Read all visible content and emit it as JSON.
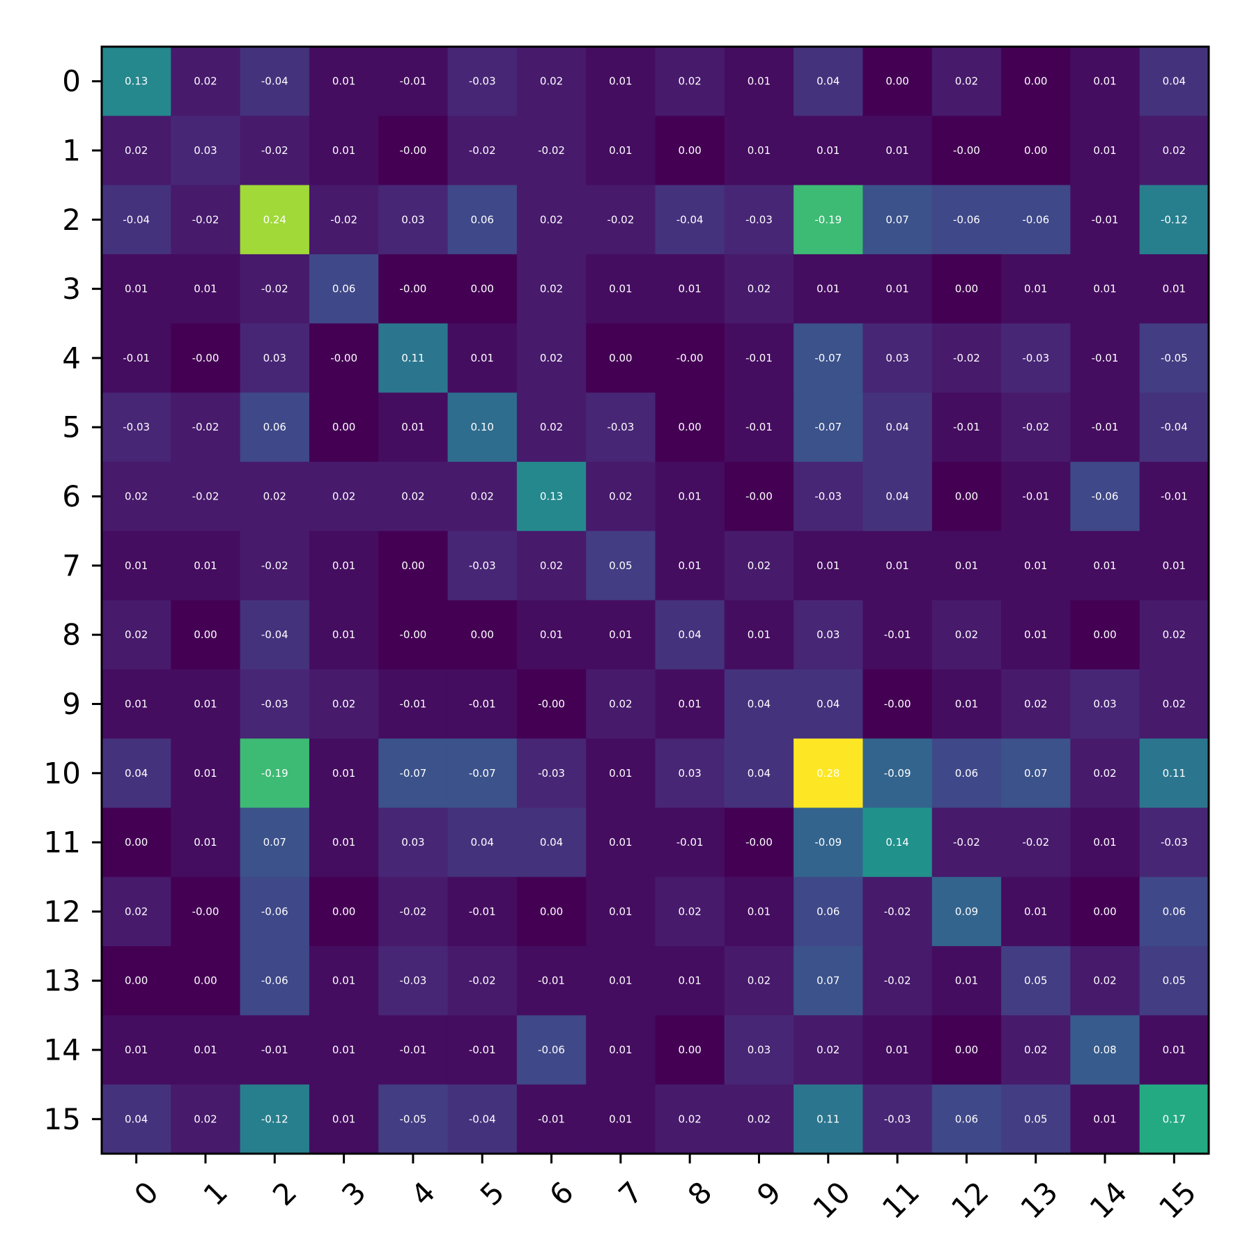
{
  "chart_data": {
    "type": "heatmap",
    "title": "",
    "xlabel": "",
    "ylabel": "",
    "x_categories": [
      "0",
      "1",
      "2",
      "3",
      "4",
      "5",
      "6",
      "7",
      "8",
      "9",
      "10",
      "11",
      "12",
      "13",
      "14",
      "15"
    ],
    "y_categories": [
      "0",
      "1",
      "2",
      "3",
      "4",
      "5",
      "6",
      "7",
      "8",
      "9",
      "10",
      "11",
      "12",
      "13",
      "14",
      "15"
    ],
    "colormap": "viridis",
    "vmin": -0.19,
    "vmax": 0.28,
    "grid": false,
    "x_tick_rotation_deg": 45,
    "values": [
      [
        0.13,
        0.02,
        -0.04,
        0.01,
        -0.01,
        -0.03,
        0.02,
        0.01,
        0.02,
        0.01,
        0.04,
        0.0,
        0.02,
        0.0,
        0.01,
        0.04
      ],
      [
        0.02,
        0.03,
        -0.02,
        0.01,
        -0.0,
        -0.02,
        -0.02,
        0.01,
        0.0,
        0.01,
        0.01,
        0.01,
        -0.0,
        0.0,
        0.01,
        0.02
      ],
      [
        -0.04,
        -0.02,
        0.24,
        -0.02,
        0.03,
        0.06,
        0.02,
        -0.02,
        -0.04,
        -0.03,
        -0.19,
        0.07,
        -0.06,
        -0.06,
        -0.01,
        -0.12
      ],
      [
        0.01,
        0.01,
        -0.02,
        0.06,
        -0.0,
        0.0,
        0.02,
        0.01,
        0.01,
        0.02,
        0.01,
        0.01,
        0.0,
        0.01,
        0.01,
        0.01
      ],
      [
        -0.01,
        -0.0,
        0.03,
        -0.0,
        0.11,
        0.01,
        0.02,
        0.0,
        -0.0,
        -0.01,
        -0.07,
        0.03,
        -0.02,
        -0.03,
        -0.01,
        -0.05
      ],
      [
        -0.03,
        -0.02,
        0.06,
        0.0,
        0.01,
        0.1,
        0.02,
        -0.03,
        0.0,
        -0.01,
        -0.07,
        0.04,
        -0.01,
        -0.02,
        -0.01,
        -0.04
      ],
      [
        0.02,
        -0.02,
        0.02,
        0.02,
        0.02,
        0.02,
        0.13,
        0.02,
        0.01,
        -0.0,
        -0.03,
        0.04,
        0.0,
        -0.01,
        -0.06,
        -0.01
      ],
      [
        0.01,
        0.01,
        -0.02,
        0.01,
        0.0,
        -0.03,
        0.02,
        0.05,
        0.01,
        0.02,
        0.01,
        0.01,
        0.01,
        0.01,
        0.01,
        0.01
      ],
      [
        0.02,
        0.0,
        -0.04,
        0.01,
        -0.0,
        0.0,
        0.01,
        0.01,
        0.04,
        0.01,
        0.03,
        -0.01,
        0.02,
        0.01,
        0.0,
        0.02
      ],
      [
        0.01,
        0.01,
        -0.03,
        0.02,
        -0.01,
        -0.01,
        -0.0,
        0.02,
        0.01,
        0.04,
        0.04,
        -0.0,
        0.01,
        0.02,
        0.03,
        0.02
      ],
      [
        0.04,
        0.01,
        -0.19,
        0.01,
        -0.07,
        -0.07,
        -0.03,
        0.01,
        0.03,
        0.04,
        0.28,
        -0.09,
        0.06,
        0.07,
        0.02,
        0.11
      ],
      [
        0.0,
        0.01,
        0.07,
        0.01,
        0.03,
        0.04,
        0.04,
        0.01,
        -0.01,
        -0.0,
        -0.09,
        0.14,
        -0.02,
        -0.02,
        0.01,
        -0.03
      ],
      [
        0.02,
        -0.0,
        -0.06,
        0.0,
        -0.02,
        -0.01,
        0.0,
        0.01,
        0.02,
        0.01,
        0.06,
        -0.02,
        0.09,
        0.01,
        0.0,
        0.06
      ],
      [
        0.0,
        0.0,
        -0.06,
        0.01,
        -0.03,
        -0.02,
        -0.01,
        0.01,
        0.01,
        0.02,
        0.07,
        -0.02,
        0.01,
        0.05,
        0.02,
        0.05
      ],
      [
        0.01,
        0.01,
        -0.01,
        0.01,
        -0.01,
        -0.01,
        -0.06,
        0.01,
        0.0,
        0.03,
        0.02,
        0.01,
        0.0,
        0.02,
        0.08,
        0.01
      ],
      [
        0.04,
        0.02,
        -0.12,
        0.01,
        -0.05,
        -0.04,
        -0.01,
        0.01,
        0.02,
        0.02,
        0.11,
        -0.03,
        0.06,
        0.05,
        0.01,
        0.17
      ]
    ],
    "labels": [
      [
        "0.13",
        "0.02",
        "-0.04",
        "0.01",
        "-0.01",
        "-0.03",
        "0.02",
        "0.01",
        "0.02",
        "0.01",
        "0.04",
        "0.00",
        "0.02",
        "0.00",
        "0.01",
        "0.04"
      ],
      [
        "0.02",
        "0.03",
        "-0.02",
        "0.01",
        "-0.00",
        "-0.02",
        "-0.02",
        "0.01",
        "0.00",
        "0.01",
        "0.01",
        "0.01",
        "-0.00",
        "0.00",
        "0.01",
        "0.02"
      ],
      [
        "-0.04",
        "-0.02",
        "0.24",
        "-0.02",
        "0.03",
        "0.06",
        "0.02",
        "-0.02",
        "-0.04",
        "-0.03",
        "-0.19",
        "0.07",
        "-0.06",
        "-0.06",
        "-0.01",
        "-0.12"
      ],
      [
        "0.01",
        "0.01",
        "-0.02",
        "0.06",
        "-0.00",
        "0.00",
        "0.02",
        "0.01",
        "0.01",
        "0.02",
        "0.01",
        "0.01",
        "0.00",
        "0.01",
        "0.01",
        "0.01"
      ],
      [
        "-0.01",
        "-0.00",
        "0.03",
        "-0.00",
        "0.11",
        "0.01",
        "0.02",
        "0.00",
        "-0.00",
        "-0.01",
        "-0.07",
        "0.03",
        "-0.02",
        "-0.03",
        "-0.01",
        "-0.05"
      ],
      [
        "-0.03",
        "-0.02",
        "0.06",
        "0.00",
        "0.01",
        "0.10",
        "0.02",
        "-0.03",
        "0.00",
        "-0.01",
        "-0.07",
        "0.04",
        "-0.01",
        "-0.02",
        "-0.01",
        "-0.04"
      ],
      [
        "0.02",
        "-0.02",
        "0.02",
        "0.02",
        "0.02",
        "0.02",
        "0.13",
        "0.02",
        "0.01",
        "-0.00",
        "-0.03",
        "0.04",
        "0.00",
        "-0.01",
        "-0.06",
        "-0.01"
      ],
      [
        "0.01",
        "0.01",
        "-0.02",
        "0.01",
        "0.00",
        "-0.03",
        "0.02",
        "0.05",
        "0.01",
        "0.02",
        "0.01",
        "0.01",
        "0.01",
        "0.01",
        "0.01",
        "0.01"
      ],
      [
        "0.02",
        "0.00",
        "-0.04",
        "0.01",
        "-0.00",
        "0.00",
        "0.01",
        "0.01",
        "0.04",
        "0.01",
        "0.03",
        "-0.01",
        "0.02",
        "0.01",
        "0.00",
        "0.02"
      ],
      [
        "0.01",
        "0.01",
        "-0.03",
        "0.02",
        "-0.01",
        "-0.01",
        "-0.00",
        "0.02",
        "0.01",
        "0.04",
        "0.04",
        "-0.00",
        "0.01",
        "0.02",
        "0.03",
        "0.02"
      ],
      [
        "0.04",
        "0.01",
        "-0.19",
        "0.01",
        "-0.07",
        "-0.07",
        "-0.03",
        "0.01",
        "0.03",
        "0.04",
        "0.28",
        "-0.09",
        "0.06",
        "0.07",
        "0.02",
        "0.11"
      ],
      [
        "0.00",
        "0.01",
        "0.07",
        "0.01",
        "0.03",
        "0.04",
        "0.04",
        "0.01",
        "-0.01",
        "-0.00",
        "-0.09",
        "0.14",
        "-0.02",
        "-0.02",
        "0.01",
        "-0.03"
      ],
      [
        "0.02",
        "-0.00",
        "-0.06",
        "0.00",
        "-0.02",
        "-0.01",
        "0.00",
        "0.01",
        "0.02",
        "0.01",
        "0.06",
        "-0.02",
        "0.09",
        "0.01",
        "0.00",
        "0.06"
      ],
      [
        "0.00",
        "0.00",
        "-0.06",
        "0.01",
        "-0.03",
        "-0.02",
        "-0.01",
        "0.01",
        "0.01",
        "0.02",
        "0.07",
        "-0.02",
        "0.01",
        "0.05",
        "0.02",
        "0.05"
      ],
      [
        "0.01",
        "0.01",
        "-0.01",
        "0.01",
        "-0.01",
        "-0.01",
        "-0.06",
        "0.01",
        "0.00",
        "0.03",
        "0.02",
        "0.01",
        "0.00",
        "0.02",
        "0.08",
        "0.01"
      ],
      [
        "0.04",
        "0.02",
        "-0.12",
        "0.01",
        "-0.05",
        "-0.04",
        "-0.01",
        "0.01",
        "0.02",
        "0.02",
        "0.11",
        "-0.03",
        "0.06",
        "0.05",
        "0.01",
        "0.17"
      ]
    ]
  }
}
